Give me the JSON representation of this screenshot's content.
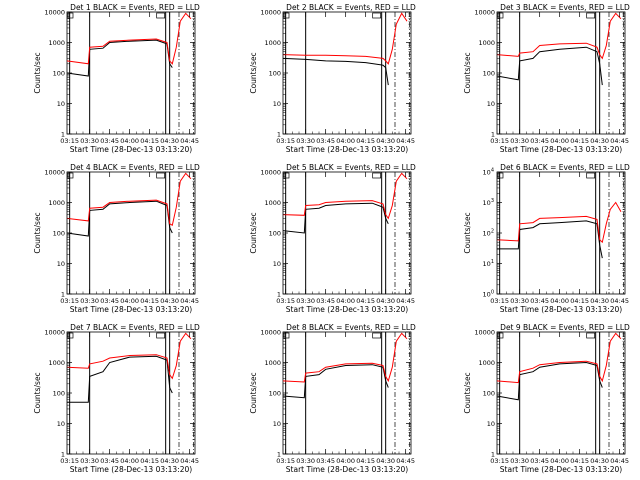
{
  "figure": {
    "xlabel": "Start Time (28-Dec-13 03:13:20)",
    "ylabel": "Counts/sec",
    "xticks": [
      "03:15",
      "03:30",
      "03:45",
      "04:00",
      "04:15",
      "04:30",
      "04:45"
    ],
    "colors": {
      "events": "#000000",
      "lld": "#ff0000"
    }
  },
  "chart_data": [
    {
      "type": "line",
      "title": "Det 1  BLACK = Events, RED = LLD",
      "y_scale": "log",
      "ylim": [
        1,
        10000
      ],
      "ytick_style": "plain",
      "series": [
        {
          "key": "events",
          "x": [
            "03:13",
            "03:29",
            "03:30",
            "03:40",
            "03:45",
            "04:00",
            "04:20",
            "04:28",
            "04:30",
            "04:32"
          ],
          "y": [
            100,
            80,
            600,
            650,
            1000,
            1100,
            1200,
            900,
            200,
            150
          ]
        },
        {
          "key": "lld",
          "x": [
            "03:13",
            "03:29",
            "03:30",
            "03:40",
            "03:45",
            "04:00",
            "04:20",
            "04:28",
            "04:30",
            "04:32",
            "04:35",
            "04:38",
            "04:42",
            "04:46"
          ],
          "y": [
            250,
            200,
            700,
            750,
            1100,
            1200,
            1300,
            1000,
            250,
            200,
            700,
            5000,
            9000,
            6000
          ]
        }
      ]
    },
    {
      "type": "line",
      "title": "Det 2  BLACK = Events, RED = LLD",
      "y_scale": "log",
      "ylim": [
        1,
        10000
      ],
      "ytick_style": "plain",
      "series": [
        {
          "key": "events",
          "x": [
            "03:13",
            "03:30",
            "03:45",
            "04:00",
            "04:15",
            "04:28",
            "04:30",
            "04:32"
          ],
          "y": [
            300,
            280,
            250,
            240,
            220,
            180,
            150,
            40
          ]
        },
        {
          "key": "lld",
          "x": [
            "03:13",
            "03:30",
            "03:45",
            "04:00",
            "04:15",
            "04:28",
            "04:30",
            "04:32",
            "04:35",
            "04:38",
            "04:42",
            "04:46"
          ],
          "y": [
            400,
            380,
            380,
            370,
            350,
            300,
            250,
            200,
            600,
            4000,
            9000,
            5000
          ]
        }
      ]
    },
    {
      "type": "line",
      "title": "Det 3  BLACK = Events, RED = LLD",
      "y_scale": "log",
      "ylim": [
        1,
        10000
      ],
      "ytick_style": "plain",
      "series": [
        {
          "key": "events",
          "x": [
            "03:13",
            "03:29",
            "03:30",
            "03:40",
            "03:45",
            "04:00",
            "04:20",
            "04:28",
            "04:30",
            "04:32"
          ],
          "y": [
            80,
            60,
            250,
            300,
            500,
            600,
            700,
            500,
            200,
            40
          ]
        },
        {
          "key": "lld",
          "x": [
            "03:13",
            "03:29",
            "03:30",
            "03:40",
            "03:45",
            "04:00",
            "04:20",
            "04:28",
            "04:30",
            "04:32",
            "04:35",
            "04:38",
            "04:42",
            "04:46"
          ],
          "y": [
            400,
            350,
            450,
            500,
            800,
            900,
            950,
            700,
            400,
            300,
            800,
            5000,
            9000,
            6000
          ]
        }
      ]
    },
    {
      "type": "line",
      "title": "Det 4  BLACK = Events, RED = LLD",
      "y_scale": "log",
      "ylim": [
        1,
        10000
      ],
      "ytick_style": "plain",
      "series": [
        {
          "key": "events",
          "x": [
            "03:13",
            "03:29",
            "03:30",
            "03:40",
            "03:45",
            "04:00",
            "04:20",
            "04:28",
            "04:30",
            "04:32"
          ],
          "y": [
            100,
            80,
            550,
            600,
            900,
            1000,
            1100,
            800,
            150,
            100
          ]
        },
        {
          "key": "lld",
          "x": [
            "03:13",
            "03:29",
            "03:30",
            "03:40",
            "03:45",
            "04:00",
            "04:20",
            "04:28",
            "04:30",
            "04:32",
            "04:35",
            "04:38",
            "04:42",
            "04:46"
          ],
          "y": [
            300,
            250,
            650,
            700,
            1000,
            1100,
            1200,
            900,
            200,
            180,
            700,
            5000,
            9000,
            6000
          ]
        }
      ]
    },
    {
      "type": "line",
      "title": "Det 5  BLACK = Events, RED = LLD",
      "y_scale": "log",
      "ylim": [
        1,
        10000
      ],
      "ytick_style": "plain",
      "series": [
        {
          "key": "events",
          "x": [
            "03:13",
            "03:29",
            "03:30",
            "03:40",
            "03:45",
            "04:00",
            "04:20",
            "04:28",
            "04:30",
            "04:32"
          ],
          "y": [
            120,
            100,
            600,
            650,
            800,
            900,
            950,
            700,
            300,
            200
          ]
        },
        {
          "key": "lld",
          "x": [
            "03:13",
            "03:29",
            "03:30",
            "03:40",
            "03:45",
            "04:00",
            "04:20",
            "04:28",
            "04:30",
            "04:32",
            "04:35",
            "04:38",
            "04:42",
            "04:46"
          ],
          "y": [
            400,
            380,
            800,
            850,
            1000,
            1100,
            1150,
            900,
            400,
            300,
            800,
            5000,
            9000,
            6000
          ]
        }
      ]
    },
    {
      "type": "line",
      "title": "Det 6  BLACK = Events, RED = LLD",
      "y_scale": "log",
      "ylim": [
        1,
        10000
      ],
      "ytick_style": "exp",
      "series": [
        {
          "key": "events",
          "x": [
            "03:13",
            "03:29",
            "03:30",
            "03:40",
            "03:45",
            "04:00",
            "04:20",
            "04:28",
            "04:30",
            "04:32"
          ],
          "y": [
            30,
            30,
            130,
            150,
            200,
            220,
            250,
            200,
            40,
            15
          ]
        },
        {
          "key": "lld",
          "x": [
            "03:13",
            "03:29",
            "03:30",
            "03:40",
            "03:45",
            "04:00",
            "04:20",
            "04:28",
            "04:30",
            "04:32",
            "04:35",
            "04:38",
            "04:42",
            "04:46"
          ],
          "y": [
            60,
            55,
            200,
            220,
            300,
            320,
            350,
            280,
            60,
            50,
            200,
            600,
            1000,
            500
          ]
        }
      ]
    },
    {
      "type": "line",
      "title": "Det 7  BLACK = Events, RED = LLD",
      "y_scale": "log",
      "ylim": [
        1,
        10000
      ],
      "ytick_style": "plain",
      "series": [
        {
          "key": "events",
          "x": [
            "03:13",
            "03:29",
            "03:30",
            "03:40",
            "03:45",
            "04:00",
            "04:20",
            "04:28",
            "04:30",
            "04:32"
          ],
          "y": [
            50,
            50,
            350,
            500,
            1000,
            1500,
            1600,
            1200,
            150,
            100
          ]
        },
        {
          "key": "lld",
          "x": [
            "03:13",
            "03:29",
            "03:30",
            "03:40",
            "03:45",
            "04:00",
            "04:20",
            "04:28",
            "04:30",
            "04:32",
            "04:35",
            "04:38",
            "04:42",
            "04:46"
          ],
          "y": [
            700,
            650,
            900,
            1100,
            1400,
            1700,
            1800,
            1400,
            400,
            300,
            800,
            5000,
            9000,
            6000
          ]
        }
      ]
    },
    {
      "type": "line",
      "title": "Det 8  BLACK = Events, RED = LLD",
      "y_scale": "log",
      "ylim": [
        1,
        10000
      ],
      "ytick_style": "plain",
      "series": [
        {
          "key": "events",
          "x": [
            "03:13",
            "03:29",
            "03:30",
            "03:40",
            "03:45",
            "04:00",
            "04:20",
            "04:28",
            "04:30",
            "04:32"
          ],
          "y": [
            80,
            70,
            350,
            400,
            600,
            800,
            850,
            700,
            250,
            150
          ]
        },
        {
          "key": "lld",
          "x": [
            "03:13",
            "03:29",
            "03:30",
            "03:40",
            "03:45",
            "04:00",
            "04:20",
            "04:28",
            "04:30",
            "04:32",
            "04:35",
            "04:38",
            "04:42",
            "04:46"
          ],
          "y": [
            250,
            230,
            450,
            500,
            700,
            900,
            950,
            800,
            350,
            250,
            700,
            5000,
            9000,
            6000
          ]
        }
      ]
    },
    {
      "type": "line",
      "title": "Det 9  BLACK = Events, RED = LLD",
      "y_scale": "log",
      "ylim": [
        1,
        10000
      ],
      "ytick_style": "plain",
      "series": [
        {
          "key": "events",
          "x": [
            "03:13",
            "03:29",
            "03:30",
            "03:40",
            "03:45",
            "04:00",
            "04:20",
            "04:28",
            "04:30",
            "04:32"
          ],
          "y": [
            80,
            60,
            400,
            500,
            700,
            900,
            1000,
            800,
            250,
            150
          ]
        },
        {
          "key": "lld",
          "x": [
            "03:13",
            "03:29",
            "03:30",
            "03:40",
            "03:45",
            "04:00",
            "04:20",
            "04:28",
            "04:30",
            "04:32",
            "04:35",
            "04:38",
            "04:42",
            "04:46"
          ],
          "y": [
            250,
            220,
            500,
            650,
            850,
            1000,
            1100,
            900,
            350,
            250,
            800,
            5000,
            9000,
            6000
          ]
        }
      ]
    }
  ]
}
